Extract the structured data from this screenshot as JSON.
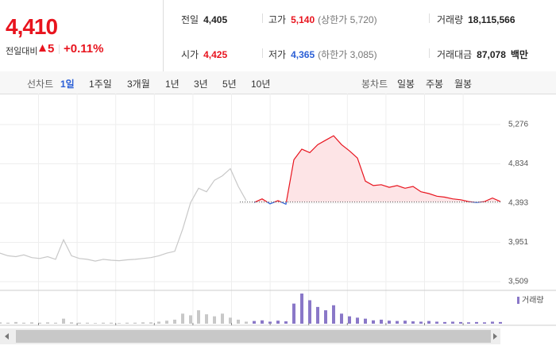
{
  "quote": {
    "price": "4,410",
    "change_label": "전일대비",
    "change": "5",
    "change_pct": "+0.11%"
  },
  "info": [
    [
      {
        "label": "전일",
        "value": "4,405"
      },
      {
        "label": "고가",
        "value": "5,140",
        "note": "(상한가 5,720)"
      },
      {
        "label": "거래량",
        "value": "18,115,566"
      }
    ],
    [
      {
        "label": "시가",
        "value": "4,425"
      },
      {
        "label": "저가",
        "value": "4,365",
        "note": "(하한가 3,085)"
      },
      {
        "label": "거래대금",
        "value": "87,078",
        "unit": "백만"
      }
    ]
  ],
  "tabs": {
    "line_label": "선차트",
    "line_periods": [
      "1일",
      "1주일",
      "3개월",
      "1년",
      "3년",
      "5년",
      "10년"
    ],
    "candle_label": "봉차트",
    "candle_periods": [
      "일봉",
      "주봉",
      "월봉"
    ]
  },
  "chart_data": {
    "type": "line",
    "ylim": [
      3420,
      5535
    ],
    "yticks": [
      {
        "value": 5276,
        "label": "5,276"
      },
      {
        "value": 4834,
        "label": "4,834"
      },
      {
        "value": 4393,
        "label": "4,393"
      },
      {
        "value": 3951,
        "label": "3,951"
      },
      {
        "value": 3509,
        "label": "3,509"
      }
    ],
    "reference": 4405,
    "up_color": "#e8141e",
    "down_color": "#2b5fd6",
    "fill_color": "#fde4e6",
    "series": [
      {
        "color": "#c8c8c8",
        "values": [
          3830,
          3800,
          3790,
          3810,
          3780,
          3770,
          3790,
          3760,
          3980,
          3800,
          3770,
          3760,
          3740,
          3760,
          3750,
          3745,
          3755,
          3760,
          3770,
          3780,
          3800,
          3830,
          3850,
          4100,
          4400,
          4560,
          4520,
          4650,
          4700,
          4780,
          4580,
          4420,
          null,
          null,
          null,
          null,
          null,
          null,
          null,
          null,
          null,
          null,
          null,
          null,
          null,
          null,
          null,
          null,
          null,
          null,
          null,
          null,
          null,
          null,
          null,
          null,
          null,
          null,
          null,
          null,
          null,
          null,
          null,
          null
        ]
      },
      {
        "color": "#e8141e",
        "values": [
          null,
          null,
          null,
          null,
          null,
          null,
          null,
          null,
          null,
          null,
          null,
          null,
          null,
          null,
          null,
          null,
          null,
          null,
          null,
          null,
          null,
          null,
          null,
          null,
          null,
          null,
          null,
          null,
          null,
          null,
          null,
          null,
          4400,
          4440,
          4385,
          4420,
          4380,
          4880,
          5000,
          4960,
          5050,
          5100,
          5150,
          5050,
          4980,
          4900,
          4640,
          4590,
          4600,
          4570,
          4590,
          4560,
          4580,
          4520,
          4500,
          4470,
          4460,
          4440,
          4430,
          4410,
          4400,
          4410,
          4450,
          4410
        ]
      }
    ],
    "volume": {
      "legend": "거래량",
      "color": "#8a78c8",
      "prev_color": "#c8c8c8",
      "values": [
        4,
        3,
        5,
        3,
        4,
        3,
        4,
        3,
        15,
        4,
        3,
        3,
        2,
        3,
        3,
        2,
        3,
        3,
        4,
        4,
        6,
        9,
        12,
        30,
        25,
        40,
        28,
        22,
        30,
        18,
        12,
        6,
        8,
        10,
        6,
        9,
        7,
        60,
        90,
        70,
        50,
        40,
        55,
        30,
        22,
        18,
        15,
        10,
        12,
        9,
        8,
        9,
        7,
        6,
        8,
        6,
        5,
        6,
        5,
        4,
        5,
        4,
        6,
        5
      ]
    }
  }
}
